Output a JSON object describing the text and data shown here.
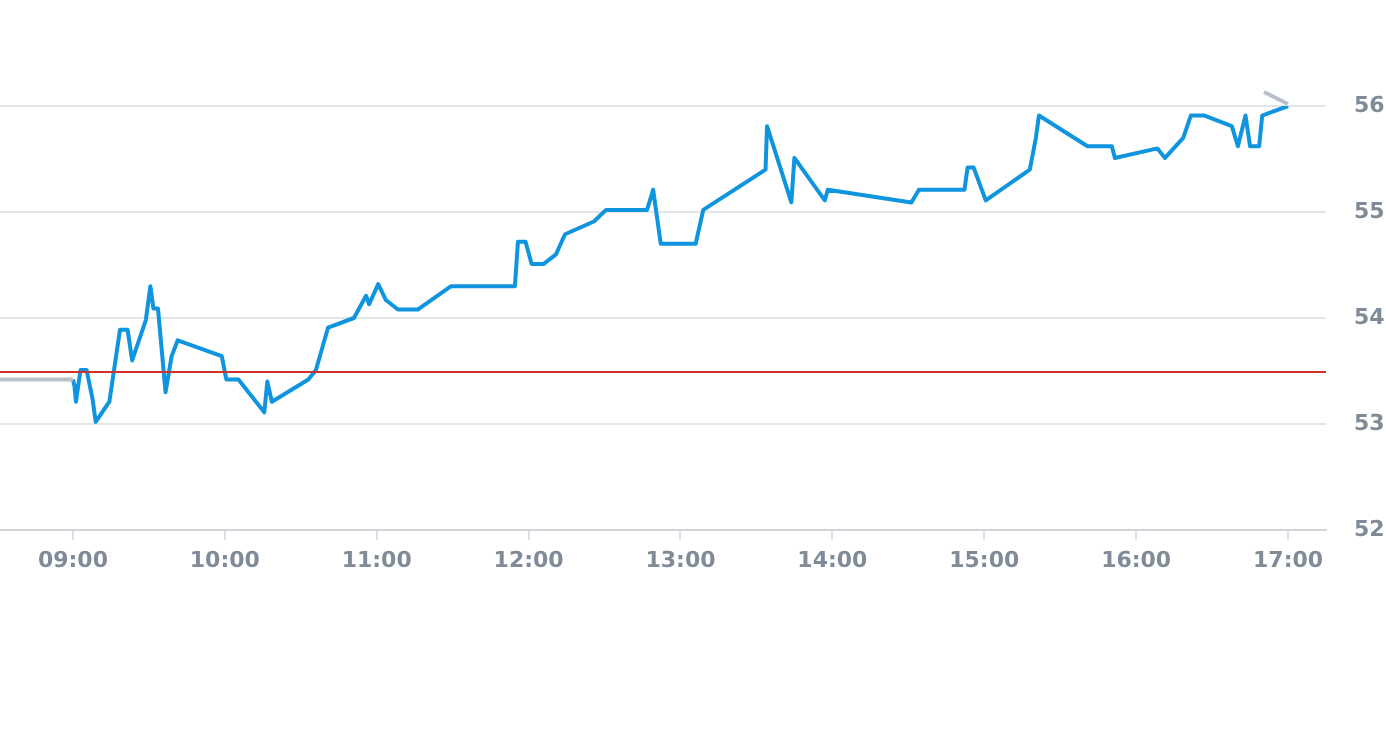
{
  "chart_data": {
    "type": "line",
    "xlim": [
      8.52,
      17.25
    ],
    "xticks": [
      {
        "value": 9,
        "label": "09:00"
      },
      {
        "value": 10,
        "label": "10:00"
      },
      {
        "value": 11,
        "label": "11:00"
      },
      {
        "value": 12,
        "label": "12:00"
      },
      {
        "value": 13,
        "label": "13:00"
      },
      {
        "value": 14,
        "label": "14:00"
      },
      {
        "value": 15,
        "label": "15:00"
      },
      {
        "value": 16,
        "label": "16:00"
      },
      {
        "value": 17,
        "label": "17:00"
      }
    ],
    "ylim": [
      52,
      56
    ],
    "yticks": [
      52,
      53,
      54,
      55,
      56
    ],
    "grid": "y",
    "legend": false,
    "marker": "none",
    "line_style": "solid",
    "ref_lines": [
      {
        "axis": "y",
        "value": 53.49,
        "color": "#d0312d"
      }
    ],
    "series": [
      {
        "color": "#b9c0c8",
        "x": [
          8.52,
          9.0
        ],
        "values": [
          53.42,
          53.42
        ]
      },
      {
        "color": "#0f94e0",
        "x": [
          9.0,
          9.01,
          9.02,
          9.05,
          9.09,
          9.13,
          9.15,
          9.24,
          9.31,
          9.36,
          9.39,
          9.48,
          9.51,
          9.53,
          9.56,
          9.61,
          9.65,
          9.69,
          9.98,
          10.01,
          10.09,
          10.26,
          10.28,
          10.31,
          10.55,
          10.6,
          10.68,
          10.85,
          10.93,
          10.95,
          11.01,
          11.06,
          11.14,
          11.27,
          11.49,
          11.91,
          11.93,
          11.98,
          12.02,
          12.1,
          12.18,
          12.24,
          12.43,
          12.51,
          12.78,
          12.82,
          12.87,
          13.1,
          13.15,
          13.56,
          13.57,
          13.73,
          13.75,
          13.95,
          13.97,
          14.52,
          14.57,
          14.87,
          14.89,
          14.93,
          15.01,
          15.3,
          15.34,
          15.36,
          15.68,
          15.84,
          15.86,
          16.14,
          16.19,
          16.31,
          16.36,
          16.45,
          16.63,
          16.67,
          16.72,
          16.75,
          16.81,
          16.83,
          17.0
        ],
        "values": [
          53.42,
          53.36,
          53.21,
          53.51,
          53.51,
          53.23,
          53.02,
          53.21,
          53.89,
          53.89,
          53.6,
          53.98,
          54.3,
          54.09,
          54.09,
          53.3,
          53.64,
          53.79,
          53.64,
          53.42,
          53.42,
          53.11,
          53.4,
          53.21,
          53.42,
          53.51,
          53.91,
          54.0,
          54.21,
          54.13,
          54.32,
          54.17,
          54.08,
          54.08,
          54.3,
          54.3,
          54.72,
          54.72,
          54.51,
          54.51,
          54.6,
          54.79,
          54.91,
          55.02,
          55.02,
          55.21,
          54.7,
          54.7,
          55.02,
          55.4,
          55.81,
          55.09,
          55.51,
          55.11,
          55.21,
          55.09,
          55.21,
          55.21,
          55.42,
          55.42,
          55.11,
          55.4,
          55.7,
          55.91,
          55.62,
          55.62,
          55.51,
          55.6,
          55.51,
          55.7,
          55.91,
          55.91,
          55.81,
          55.62,
          55.91,
          55.62,
          55.62,
          55.91,
          56.0
        ]
      }
    ]
  }
}
